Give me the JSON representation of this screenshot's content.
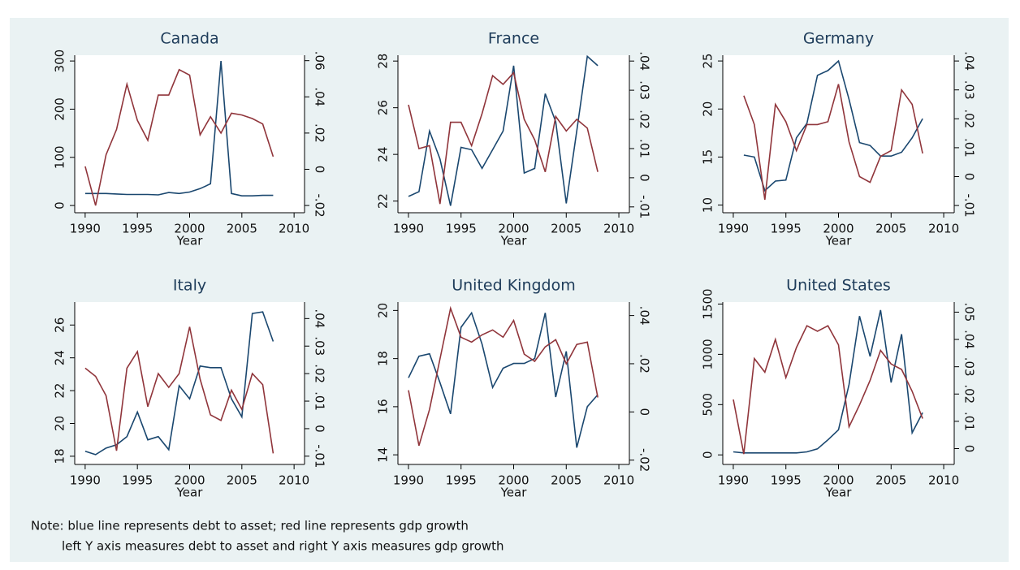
{
  "chart_data": [
    {
      "type": "line",
      "title": "Canada",
      "x_label": "Year",
      "x": [
        1990,
        1991,
        1992,
        1993,
        1994,
        1995,
        1996,
        1997,
        1998,
        1999,
        2000,
        2001,
        2002,
        2003,
        2004,
        2005,
        2006,
        2007,
        2008
      ],
      "xlim": [
        1989,
        2011
      ],
      "xticks": [
        1990,
        1995,
        2000,
        2005,
        2010
      ],
      "ylim": [
        -15,
        312
      ],
      "yticks": [
        0,
        100,
        200,
        300
      ],
      "y2lim": [
        -0.024,
        0.063
      ],
      "y2ticks": [
        {
          "value": -0.02,
          "label": "-.02"
        },
        0,
        {
          "value": 0.02,
          "label": ".02"
        },
        {
          "value": 0.04,
          "label": ".04"
        },
        {
          "value": 0.06,
          "label": ".06"
        }
      ],
      "series": [
        {
          "color": "#1a476f",
          "values": [
            25,
            25,
            25,
            24,
            23,
            23,
            23,
            22,
            27,
            25,
            28,
            35,
            45,
            300,
            25,
            20,
            20,
            21,
            21
          ]
        },
        {
          "color": "#90353b",
          "axis": "y2",
          "values": [
            0.0016,
            -0.02,
            0.008,
            0.022,
            0.047,
            0.027,
            0.016,
            0.041,
            0.041,
            0.055,
            0.052,
            0.019,
            0.029,
            0.02,
            0.031,
            0.03,
            0.028,
            0.025,
            0.007
          ]
        }
      ]
    },
    {
      "type": "line",
      "title": "France",
      "x_label": "Year",
      "x": [
        1990,
        1991,
        1992,
        1993,
        1994,
        1995,
        1996,
        1997,
        1998,
        1999,
        2000,
        2001,
        2002,
        2003,
        2004,
        2005,
        2006,
        2007,
        2008
      ],
      "xlim": [
        1989,
        2011
      ],
      "xticks": [
        1990,
        1995,
        2000,
        2005,
        2010
      ],
      "ylim": [
        21.5,
        28.25
      ],
      "yticks": [
        22,
        24,
        26,
        28
      ],
      "y2lim": [
        -0.012,
        0.042
      ],
      "y2ticks": [
        {
          "value": -0.01,
          "label": "-.01"
        },
        0,
        {
          "value": 0.01,
          "label": ".01"
        },
        {
          "value": 0.02,
          "label": ".02"
        },
        {
          "value": 0.03,
          "label": ".03"
        },
        {
          "value": 0.04,
          "label": ".04"
        }
      ],
      "series": [
        {
          "color": "#1a476f",
          "values": [
            22.2,
            22.4,
            25.0,
            23.8,
            21.8,
            24.3,
            24.2,
            23.4,
            24.2,
            25.0,
            27.8,
            23.2,
            23.4,
            26.6,
            25.4,
            21.9,
            25.0,
            28.2,
            27.8
          ]
        },
        {
          "color": "#90353b",
          "axis": "y2",
          "values": [
            0.025,
            0.01,
            0.011,
            -0.009,
            0.019,
            0.019,
            0.011,
            0.022,
            0.035,
            0.032,
            0.036,
            0.02,
            0.013,
            0.002,
            0.021,
            0.016,
            0.02,
            0.017,
            0.002
          ]
        }
      ]
    },
    {
      "type": "line",
      "title": "Germany",
      "x_label": "Year",
      "x": [
        1990,
        1991,
        1992,
        1993,
        1994,
        1995,
        1996,
        1997,
        1998,
        1999,
        2000,
        2001,
        2002,
        2003,
        2004,
        2005,
        2006,
        2007,
        2008
      ],
      "xlim": [
        1989,
        2011
      ],
      "xticks": [
        1990,
        1995,
        2000,
        2005,
        2010
      ],
      "ylim": [
        9.2,
        25.6
      ],
      "yticks": [
        10,
        15,
        20,
        25
      ],
      "y2lim": [
        -0.0125,
        0.042
      ],
      "y2ticks": [
        {
          "value": -0.01,
          "label": "-.01"
        },
        0,
        {
          "value": 0.01,
          "label": ".01"
        },
        {
          "value": 0.02,
          "label": ".02"
        },
        {
          "value": 0.03,
          "label": ".03"
        },
        {
          "value": 0.04,
          "label": ".04"
        }
      ],
      "series": [
        {
          "color": "#1a476f",
          "values": [
            null,
            15.2,
            15.0,
            11.5,
            12.5,
            12.6,
            17.0,
            18.5,
            23.5,
            24.0,
            25.0,
            21.0,
            16.5,
            16.2,
            15.1,
            15.1,
            15.5,
            17.0,
            19.0
          ]
        },
        {
          "color": "#90353b",
          "axis": "y2",
          "values": [
            null,
            0.028,
            0.018,
            -0.008,
            0.025,
            0.019,
            0.009,
            0.018,
            0.018,
            0.019,
            0.032,
            0.012,
            0.0,
            -0.002,
            0.007,
            0.009,
            0.03,
            0.025,
            0.008
          ]
        }
      ]
    },
    {
      "type": "line",
      "title": "Italy",
      "x_label": "Year",
      "x": [
        1990,
        1991,
        1992,
        1993,
        1994,
        1995,
        1996,
        1997,
        1998,
        1999,
        2000,
        2001,
        2002,
        2003,
        2004,
        2005,
        2006,
        2007,
        2008
      ],
      "xlim": [
        1989,
        2011
      ],
      "xticks": [
        1990,
        1995,
        2000,
        2005,
        2010
      ],
      "ylim": [
        17.5,
        27.4
      ],
      "yticks": [
        18,
        20,
        22,
        24,
        26
      ],
      "y2lim": [
        -0.013,
        0.046
      ],
      "y2ticks": [
        {
          "value": -0.01,
          "label": "-.01"
        },
        0,
        {
          "value": 0.01,
          "label": ".01"
        },
        {
          "value": 0.02,
          "label": ".02"
        },
        {
          "value": 0.03,
          "label": ".03"
        },
        {
          "value": 0.04,
          "label": ".04"
        }
      ],
      "series": [
        {
          "color": "#1a476f",
          "values": [
            18.3,
            18.1,
            18.5,
            18.7,
            19.2,
            20.7,
            19.0,
            19.2,
            18.4,
            22.3,
            21.5,
            23.5,
            23.4,
            23.4,
            21.5,
            20.4,
            26.7,
            26.8,
            25.0
          ]
        },
        {
          "color": "#90353b",
          "axis": "y2",
          "values": [
            0.022,
            0.019,
            0.012,
            -0.008,
            0.022,
            0.028,
            0.008,
            0.02,
            0.015,
            0.02,
            0.037,
            0.018,
            0.005,
            0.003,
            0.014,
            0.007,
            0.02,
            0.016,
            -0.009
          ]
        }
      ]
    },
    {
      "type": "line",
      "title": "United Kingdom",
      "x_label": "Year",
      "x": [
        1990,
        1991,
        1992,
        1993,
        1994,
        1995,
        1996,
        1997,
        1998,
        1999,
        2000,
        2001,
        2002,
        2003,
        2004,
        2005,
        2006,
        2007,
        2008
      ],
      "xlim": [
        1989,
        2011
      ],
      "xticks": [
        1990,
        1995,
        2000,
        2005,
        2010
      ],
      "ylim": [
        13.6,
        20.35
      ],
      "yticks": [
        14,
        16,
        18,
        20
      ],
      "y2lim": [
        -0.0218,
        0.0456
      ],
      "y2ticks": [
        {
          "value": -0.02,
          "label": "-.02"
        },
        0,
        {
          "value": 0.02,
          "label": ".02"
        },
        {
          "value": 0.04,
          "label": ".04"
        }
      ],
      "series": [
        {
          "color": "#1a476f",
          "values": [
            17.2,
            18.1,
            18.2,
            17.0,
            15.7,
            19.3,
            19.9,
            18.6,
            16.8,
            17.6,
            17.8,
            17.8,
            18.0,
            19.9,
            16.4,
            18.3,
            14.3,
            16.0,
            16.5
          ]
        },
        {
          "color": "#90353b",
          "axis": "y2",
          "values": [
            0.009,
            -0.014,
            0.001,
            0.022,
            0.043,
            0.031,
            0.029,
            0.032,
            0.034,
            0.031,
            0.038,
            0.024,
            0.021,
            0.027,
            0.03,
            0.02,
            0.028,
            0.029,
            0.006
          ]
        }
      ]
    },
    {
      "type": "line",
      "title": "United States",
      "x_label": "Year",
      "x": [
        1990,
        1991,
        1992,
        1993,
        1994,
        1995,
        1996,
        1997,
        1998,
        1999,
        2000,
        2001,
        2002,
        2003,
        2004,
        2005,
        2006,
        2007,
        2008
      ],
      "xlim": [
        1989,
        2011
      ],
      "xticks": [
        1990,
        1995,
        2000,
        2005,
        2010
      ],
      "ylim": [
        -95,
        1520
      ],
      "yticks": [
        0,
        500,
        1000,
        1500
      ],
      "y2lim": [
        -0.0058,
        0.0537
      ],
      "y2ticks": [
        0,
        {
          "value": 0.01,
          "label": ".01"
        },
        {
          "value": 0.02,
          "label": ".02"
        },
        {
          "value": 0.03,
          "label": ".03"
        },
        {
          "value": 0.04,
          "label": ".04"
        },
        {
          "value": 0.05,
          "label": ".05"
        }
      ],
      "series": [
        {
          "color": "#1a476f",
          "values": [
            30,
            20,
            20,
            20,
            20,
            20,
            20,
            30,
            60,
            150,
            250,
            700,
            1380,
            980,
            1440,
            720,
            1200,
            220,
            420
          ]
        },
        {
          "color": "#90353b",
          "axis": "y2",
          "values": [
            0.018,
            -0.002,
            0.033,
            0.028,
            0.04,
            0.026,
            0.037,
            0.045,
            0.043,
            0.045,
            0.038,
            0.008,
            0.016,
            0.025,
            0.036,
            0.031,
            0.029,
            0.021,
            0.011
          ]
        }
      ]
    }
  ],
  "note": [
    "Note: blue line represents debt to asset; red line represents gdp growth",
    "left Y axis measures debt to asset and right Y axis measures gdp growth"
  ]
}
